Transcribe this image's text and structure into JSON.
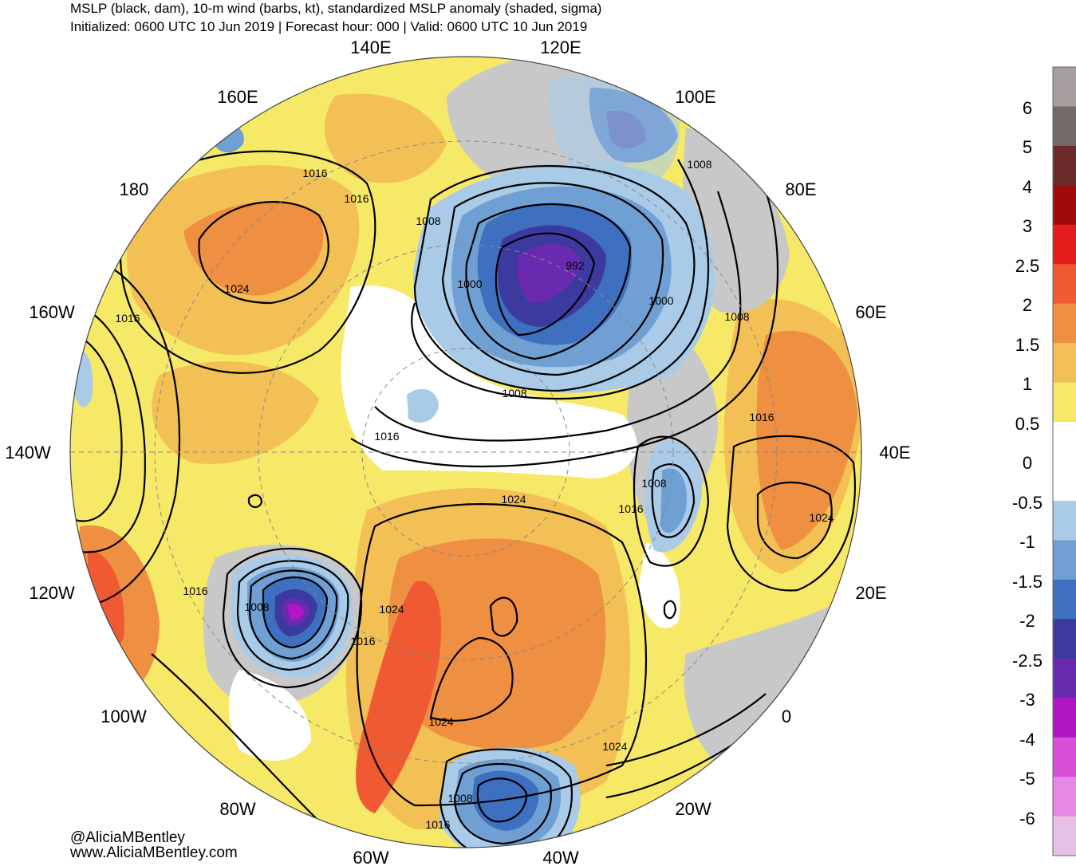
{
  "header": {
    "title": "MSLP (black, dam), 10-m wind (barbs, kt), standardized MSLP anomaly (shaded, sigma)",
    "subtitle": "Initialized: 0600 UTC 10 Jun 2019 | Forecast hour: 000 | Valid: 0600 UTC 10 Jun 2019"
  },
  "longitude_labels": [
    "140E",
    "120E",
    "100E",
    "80E",
    "60E",
    "40E",
    "20E",
    "0",
    "20W",
    "40W",
    "60W",
    "80W",
    "100W",
    "120W",
    "140W",
    "160W",
    "180",
    "160E"
  ],
  "isobar_labels": [
    "1016",
    "1016",
    "1008",
    "1024",
    "1016",
    "992",
    "1000",
    "1000",
    "1008",
    "1008",
    "1008",
    "1016",
    "1016",
    "1008",
    "1016",
    "1024",
    "1024",
    "1008",
    "1016",
    "1024",
    "1024",
    "1008",
    "1016",
    "1016",
    "1024"
  ],
  "colorbar": {
    "ticks": [
      "6",
      "5",
      "4",
      "3",
      "2.5",
      "2",
      "1.5",
      "1",
      "0.5",
      "0",
      "-0.5",
      "-1",
      "-1.5",
      "-2",
      "-2.5",
      "-3",
      "-4",
      "-5",
      "-6"
    ],
    "colors": [
      "#a79f9f",
      "#766a6a",
      "#6b2b2b",
      "#a20a0a",
      "#e61c1c",
      "#f05a32",
      "#ee8f42",
      "#f2c055",
      "#f7e968",
      "#ffffff",
      "#ffffff",
      "#a9cbe7",
      "#6f9fd3",
      "#3f6fbf",
      "#3c3a9f",
      "#6a2ab0",
      "#b016c4",
      "#d94fd8",
      "#e888e4",
      "#e6c0e6"
    ]
  },
  "credits": {
    "handle": "@AliciaMBentley",
    "website": "www.AliciaMBentley.com"
  }
}
